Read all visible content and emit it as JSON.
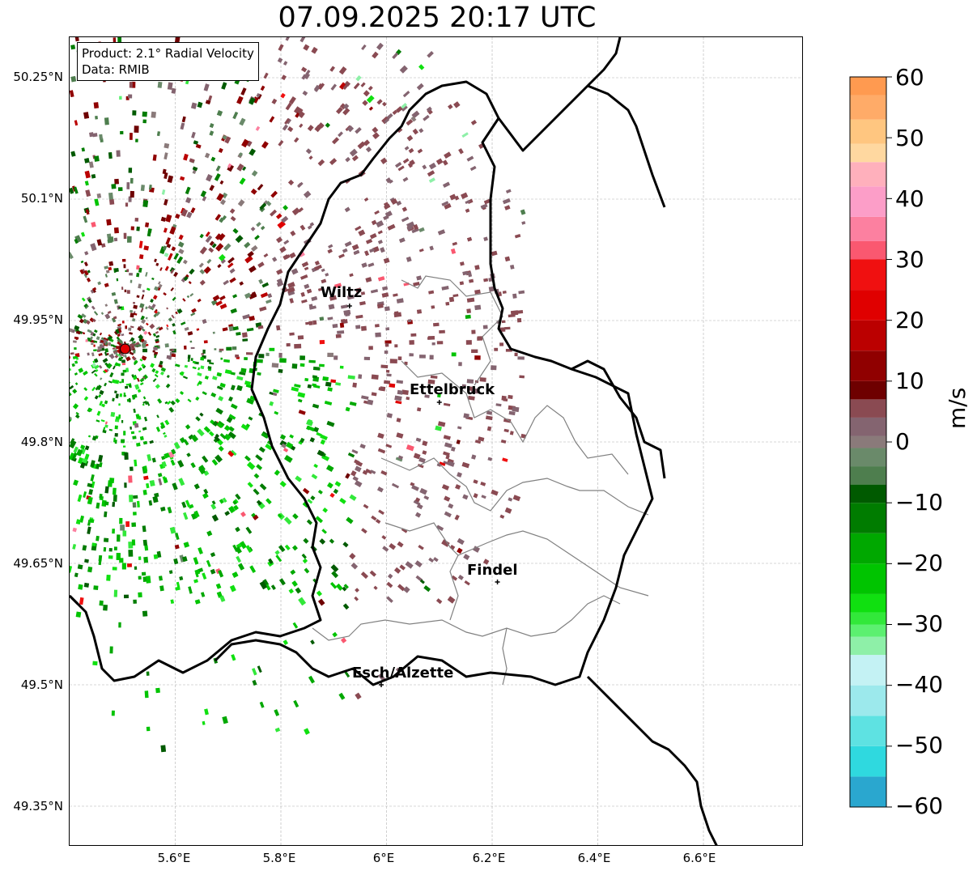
{
  "title": "07.09.2025 20:17 UTC",
  "infobox": {
    "product": "Product: 2.1° Radial Velocity",
    "data": "Data: RMIB"
  },
  "axes": {
    "y_ticks": [
      "50.25°N",
      "50.1°N",
      "49.95°N",
      "49.8°N",
      "49.65°N",
      "49.5°N",
      "49.35°N"
    ],
    "x_ticks": [
      "5.6°E",
      "5.8°E",
      "6°E",
      "6.2°E",
      "6.4°E",
      "6.6°E"
    ]
  },
  "cities": [
    {
      "name": "Wiltz"
    },
    {
      "name": "Ettelbruck"
    },
    {
      "name": "Findel"
    },
    {
      "name": "Esch/Alzette"
    }
  ],
  "colorbar": {
    "label": "m/s",
    "ticks": [
      "60",
      "50",
      "40",
      "30",
      "20",
      "10",
      "0",
      "−10",
      "−20",
      "−30",
      "−40",
      "−50",
      "−60"
    ],
    "range": [
      -60,
      60
    ]
  },
  "chart_data": {
    "type": "heatmap",
    "title": "07.09.2025 20:17 UTC",
    "xlabel": "",
    "ylabel": "",
    "xlim": [
      5.4,
      6.79
    ],
    "ylim": [
      49.3,
      50.3
    ],
    "x_ticks": [
      5.6,
      5.8,
      6.0,
      6.2,
      6.4,
      6.6
    ],
    "y_ticks": [
      49.35,
      49.5,
      49.65,
      49.8,
      49.95,
      50.1,
      50.25
    ],
    "grid": true,
    "colorbar_label": "m/s",
    "colorbar_range": [
      -60,
      60
    ],
    "radar_site": {
      "lon": 5.505,
      "lat": 49.915
    },
    "cities": [
      {
        "name": "Wiltz",
        "lon": 5.93,
        "lat": 49.968
      },
      {
        "name": "Ettelbruck",
        "lon": 6.1,
        "lat": 49.849
      },
      {
        "name": "Findel",
        "lon": 6.21,
        "lat": 49.627
      },
      {
        "name": "Esch/Alzette",
        "lon": 5.99,
        "lat": 49.5
      }
    ]
  },
  "colors": {
    "border_national": "#000000",
    "border_cantonal": "#808080",
    "radar_site": "#e00000",
    "gridline": "#b0b0b0"
  }
}
